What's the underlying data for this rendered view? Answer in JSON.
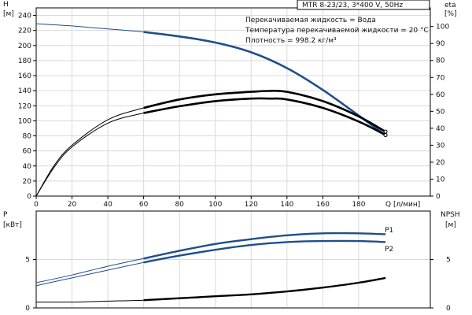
{
  "chart_data": [
    {
      "type": "line",
      "title_box": "MTR 8-23/23, 3*400 V, 50Hz",
      "notes": [
        "Перекачиваемая жидкость = Вода",
        "Температура перекачиваемой жидкости = 20 °C",
        "Плотность = 998.2 кг/м³"
      ],
      "ylabel_left": [
        "H",
        "[м]"
      ],
      "ylabel_right": [
        "eta",
        "[%]"
      ],
      "xlabel": "Q [л/мин]",
      "xlim": [
        0,
        220
      ],
      "ylim_left": [
        0,
        250
      ],
      "ylim_right": [
        0,
        111
      ],
      "x_ticks": [
        0,
        20,
        40,
        60,
        80,
        100,
        120,
        140,
        160,
        180
      ],
      "y_ticks_left": [
        0,
        20,
        40,
        60,
        80,
        100,
        120,
        140,
        160,
        180,
        200,
        220,
        240
      ],
      "y_ticks_right": [
        0,
        10,
        20,
        30,
        40,
        50,
        60,
        70,
        80,
        90,
        100
      ],
      "series": [
        {
          "axis": "left",
          "color": "#1f4e8c",
          "x": [
            0,
            20,
            40,
            60,
            80,
            100,
            120,
            140,
            160,
            180,
            195
          ],
          "y": [
            229,
            226,
            222,
            218,
            212,
            204,
            191,
            170,
            141,
            107,
            81
          ]
        },
        {
          "axis": "right",
          "color": "#000000",
          "x": [
            0,
            10,
            20,
            40,
            60,
            80,
            100,
            120,
            130,
            140,
            160,
            180,
            195
          ],
          "y": [
            0,
            18,
            30,
            45,
            52,
            57,
            60,
            61.5,
            62,
            61.5,
            56,
            47,
            38
          ]
        },
        {
          "axis": "right",
          "color": "#000000",
          "x": [
            0,
            10,
            20,
            40,
            60,
            80,
            100,
            120,
            130,
            140,
            160,
            180,
            195
          ],
          "y": [
            0,
            17,
            29,
            43,
            49,
            53,
            56,
            57.5,
            57.5,
            57,
            52,
            44,
            36
          ]
        }
      ]
    },
    {
      "type": "line",
      "ylabel_left": [
        "P",
        "[кВт]"
      ],
      "ylabel_right": [
        "NPSH",
        "[м]"
      ],
      "xlim": [
        0,
        220
      ],
      "ylim_left": [
        0,
        10
      ],
      "ylim_right": [
        0,
        10
      ],
      "y_ticks_left": [
        0,
        5
      ],
      "y_ticks_right": [
        0,
        5
      ],
      "series": [
        {
          "name": "P1",
          "axis": "left",
          "color": "#1f4e8c",
          "x": [
            0,
            20,
            40,
            60,
            80,
            100,
            120,
            140,
            160,
            180,
            195
          ],
          "y": [
            2.6,
            3.4,
            4.3,
            5.1,
            5.9,
            6.6,
            7.1,
            7.5,
            7.7,
            7.7,
            7.6
          ]
        },
        {
          "name": "P2",
          "axis": "left",
          "color": "#1f4e8c",
          "x": [
            0,
            20,
            40,
            60,
            80,
            100,
            120,
            140,
            160,
            180,
            195
          ],
          "y": [
            2.3,
            3.1,
            3.9,
            4.7,
            5.4,
            6.0,
            6.5,
            6.8,
            6.9,
            6.9,
            6.8
          ]
        },
        {
          "axis": "right",
          "color": "#000000",
          "x": [
            0,
            20,
            40,
            60,
            80,
            100,
            120,
            140,
            160,
            180,
            195
          ],
          "y": [
            0.6,
            0.6,
            0.7,
            0.8,
            1.0,
            1.2,
            1.4,
            1.7,
            2.1,
            2.6,
            3.1
          ]
        }
      ]
    }
  ]
}
